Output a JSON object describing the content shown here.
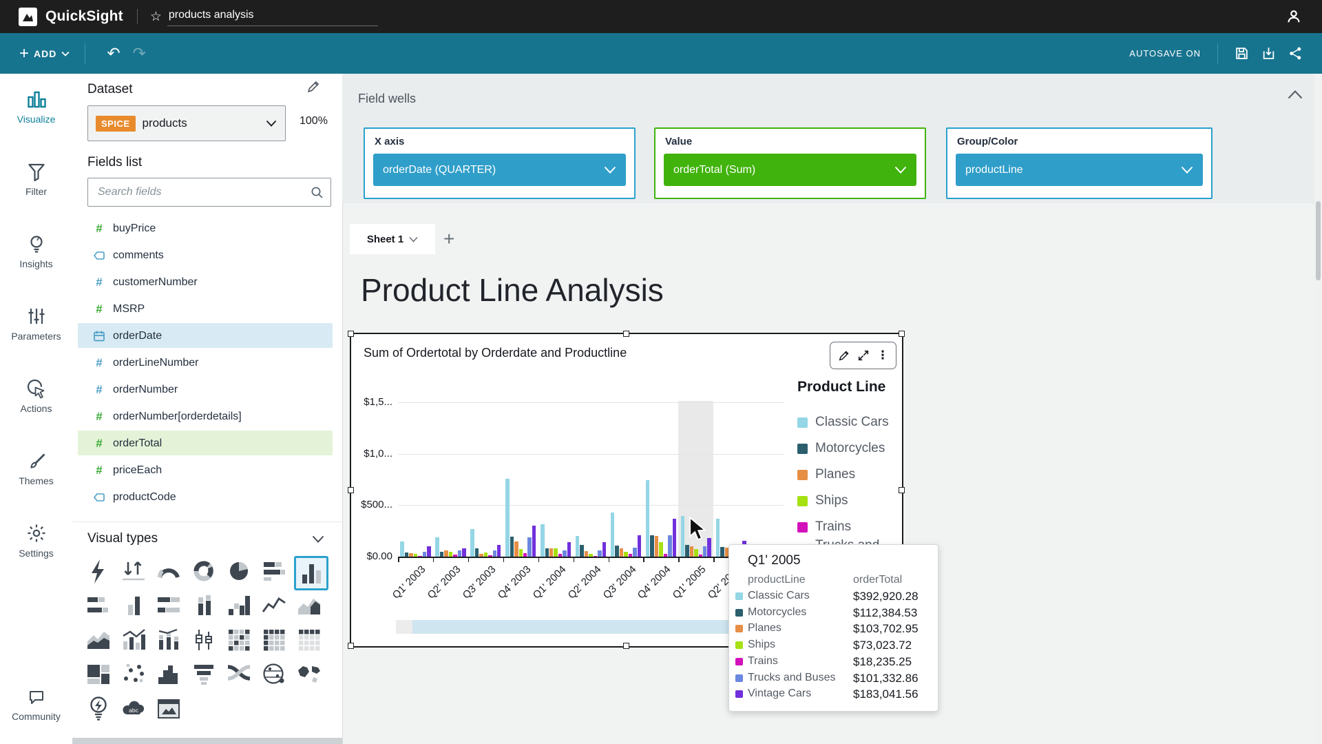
{
  "topbar": {
    "app_name": "QuickSight",
    "doc_title": "products analysis"
  },
  "action_bar": {
    "add_label": "ADD",
    "autosave_label": "AUTOSAVE ON"
  },
  "nav_rail": {
    "items": [
      {
        "label": "Visualize",
        "icon": "bar-chart-icon",
        "active": true
      },
      {
        "label": "Filter",
        "icon": "funnel-icon",
        "active": false
      },
      {
        "label": "Insights",
        "icon": "lightbulb-icon",
        "active": false
      },
      {
        "label": "Parameters",
        "icon": "sliders-icon",
        "active": false
      },
      {
        "label": "Actions",
        "icon": "cursor-click-icon",
        "active": false
      },
      {
        "label": "Themes",
        "icon": "paintbrush-icon",
        "active": false
      },
      {
        "label": "Settings",
        "icon": "gear-icon",
        "active": false
      }
    ],
    "community_label": "Community"
  },
  "dataset_panel": {
    "heading": "Dataset",
    "spice_badge": "SPICE",
    "dataset_name": "products",
    "import_pct": "100%",
    "fields_heading": "Fields list",
    "search_placeholder": "Search fields",
    "fields": [
      {
        "name": "buyPrice",
        "type": "numeric",
        "color": "#3aaa35",
        "highlight": ""
      },
      {
        "name": "comments",
        "type": "string",
        "color": "#4d9fc7",
        "highlight": ""
      },
      {
        "name": "customerNumber",
        "type": "numeric",
        "color": "#4d9fc7",
        "highlight": ""
      },
      {
        "name": "MSRP",
        "type": "numeric",
        "color": "#3aaa35",
        "highlight": ""
      },
      {
        "name": "orderDate",
        "type": "date",
        "color": "#4d9fc7",
        "highlight": "#d8eaf3"
      },
      {
        "name": "orderLineNumber",
        "type": "numeric",
        "color": "#4d9fc7",
        "highlight": ""
      },
      {
        "name": "orderNumber",
        "type": "numeric",
        "color": "#4d9fc7",
        "highlight": ""
      },
      {
        "name": "orderNumber[orderdetails]",
        "type": "numeric",
        "color": "#3aaa35",
        "highlight": ""
      },
      {
        "name": "orderTotal",
        "type": "numeric",
        "color": "#3aaa35",
        "highlight": "#e4f3d8"
      },
      {
        "name": "priceEach",
        "type": "numeric",
        "color": "#3aaa35",
        "highlight": ""
      },
      {
        "name": "productCode",
        "type": "string",
        "color": "#4d9fc7",
        "highlight": ""
      }
    ],
    "visual_types_heading": "Visual types",
    "visual_types": [
      "auto-graph",
      "kpi",
      "gauge-chart",
      "donut-chart",
      "pie-chart",
      "horizontal-stacked-bar-chart",
      "vertical-bar-chart",
      "horizontal-bar-chart",
      "vertical-grouped-bar-chart",
      "horizontal-stacked-100-bar-chart",
      "vertical-stacked-bar-chart",
      "waterfall-chart",
      "line-chart",
      "area-line-chart",
      "stacked-area-chart",
      "combo-bar-line-chart",
      "stacked-combo-chart",
      "box-plot",
      "heat-map",
      "pivot-table",
      "table",
      "tree-map",
      "scatter-plot",
      "histogram",
      "funnel-chart",
      "sankey-diagram",
      "points-on-map",
      "filled-map",
      "insights",
      "word-cloud",
      "custom-visual"
    ],
    "selected_visual_type": "vertical-bar-chart"
  },
  "field_wells": {
    "heading": "Field wells",
    "wells": [
      {
        "label": "X axis",
        "value": "orderDate (QUARTER)",
        "accent": "#2f9ec9",
        "border": "#2aa0cc"
      },
      {
        "label": "Value",
        "value": "orderTotal (Sum)",
        "accent": "#40b30c",
        "border": "#40b30c"
      },
      {
        "label": "Group/Color",
        "value": "productLine",
        "accent": "#2f9ec9",
        "border": "#2aa0cc"
      }
    ]
  },
  "sheet": {
    "tab_label": "Sheet 1",
    "page_title": "Product Line Analysis"
  },
  "visual": {
    "title": "Sum of Ordertotal by Orderdate and Productline"
  },
  "chart_data": {
    "type": "bar",
    "title": "Sum of Ordertotal by Orderdate and Productline",
    "categories": [
      "Q1' 2003",
      "Q2' 2003",
      "Q3' 2003",
      "Q4' 2003",
      "Q1' 2004",
      "Q2' 2004",
      "Q3' 2004",
      "Q4' 2004",
      "Q1' 2005",
      "Q2' 2005"
    ],
    "last_category_partial": true,
    "series": [
      {
        "name": "Classic Cars",
        "color": "#94d6e5",
        "values": [
          150000,
          190000,
          268000,
          760000,
          318000,
          198000,
          428000,
          742000,
          392920.28,
          370000
        ]
      },
      {
        "name": "Motorcycles",
        "color": "#2b5f6e",
        "values": [
          38000,
          48000,
          82000,
          192000,
          80000,
          112000,
          108000,
          205000,
          112384.53,
          95000
        ]
      },
      {
        "name": "Planes",
        "color": "#e78e45",
        "values": [
          33000,
          58000,
          30000,
          150000,
          78000,
          55000,
          82000,
          198000,
          103702.95,
          85000
        ]
      },
      {
        "name": "Ships",
        "color": "#a6e113",
        "values": [
          25000,
          48000,
          40000,
          72000,
          78000,
          25000,
          48000,
          138000,
          73023.72,
          40000
        ]
      },
      {
        "name": "Trains",
        "color": "#d412bc",
        "values": [
          8000,
          18000,
          14000,
          32000,
          25000,
          8000,
          28000,
          28000,
          18235.25,
          10000
        ]
      },
      {
        "name": "Trucks and Buses",
        "color": "#6b87e0",
        "values": [
          45000,
          58000,
          62000,
          185000,
          62000,
          62000,
          88000,
          205000,
          101332.86,
          90000
        ]
      },
      {
        "name": "Vintage Cars",
        "color": "#7130dc",
        "values": [
          98000,
          78000,
          112000,
          300000,
          142000,
          138000,
          205000,
          368000,
          183041.56,
          155000
        ]
      }
    ],
    "ylim": [
      0,
      1500000
    ],
    "ytick_values": [
      0,
      500000,
      1000000,
      1500000
    ],
    "ytick_labels": [
      "$0.00",
      "$500...",
      "$1,0...",
      "$1,5..."
    ],
    "xlabel": "",
    "ylabel": "",
    "grid": true,
    "legend_title": "Product Line",
    "legend_position": "right",
    "highlighted_category": "Q1' 2005"
  },
  "tooltip": {
    "title": "Q1' 2005",
    "columns": [
      "productLine",
      "orderTotal"
    ],
    "rows": [
      {
        "name": "Classic Cars",
        "value": "$392,920.28",
        "color": "#94d6e5"
      },
      {
        "name": "Motorcycles",
        "value": "$112,384.53",
        "color": "#2b5f6e"
      },
      {
        "name": "Planes",
        "value": "$103,702.95",
        "color": "#e78e45"
      },
      {
        "name": "Ships",
        "value": "$73,023.72",
        "color": "#a6e113"
      },
      {
        "name": "Trains",
        "value": "$18,235.25",
        "color": "#d412bc"
      },
      {
        "name": "Trucks and Buses",
        "value": "$101,332.86",
        "color": "#6b87e0"
      },
      {
        "name": "Vintage Cars",
        "value": "$183,041.56",
        "color": "#7130dc"
      }
    ]
  }
}
